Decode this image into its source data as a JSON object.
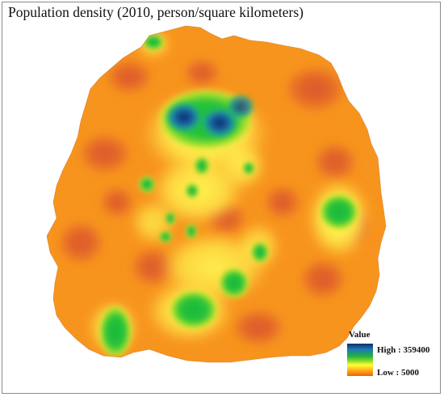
{
  "title": "Population density (2010, person/square kilometers)",
  "legend": {
    "title": "Value",
    "high_label": "High : 359400",
    "low_label": "Low : 5000",
    "high_value": 359400,
    "low_value": 5000,
    "ramp_colors": [
      "#08306b",
      "#1f78b4",
      "#1fb040",
      "#7fd62a",
      "#ffff33",
      "#ffb020",
      "#f06000"
    ]
  },
  "map": {
    "base_color": "#f7941d",
    "low_color": "#e0602a",
    "mid_color": "#ffe84a",
    "high_color": "#1fb040",
    "peak_color": "#0b3a78"
  }
}
